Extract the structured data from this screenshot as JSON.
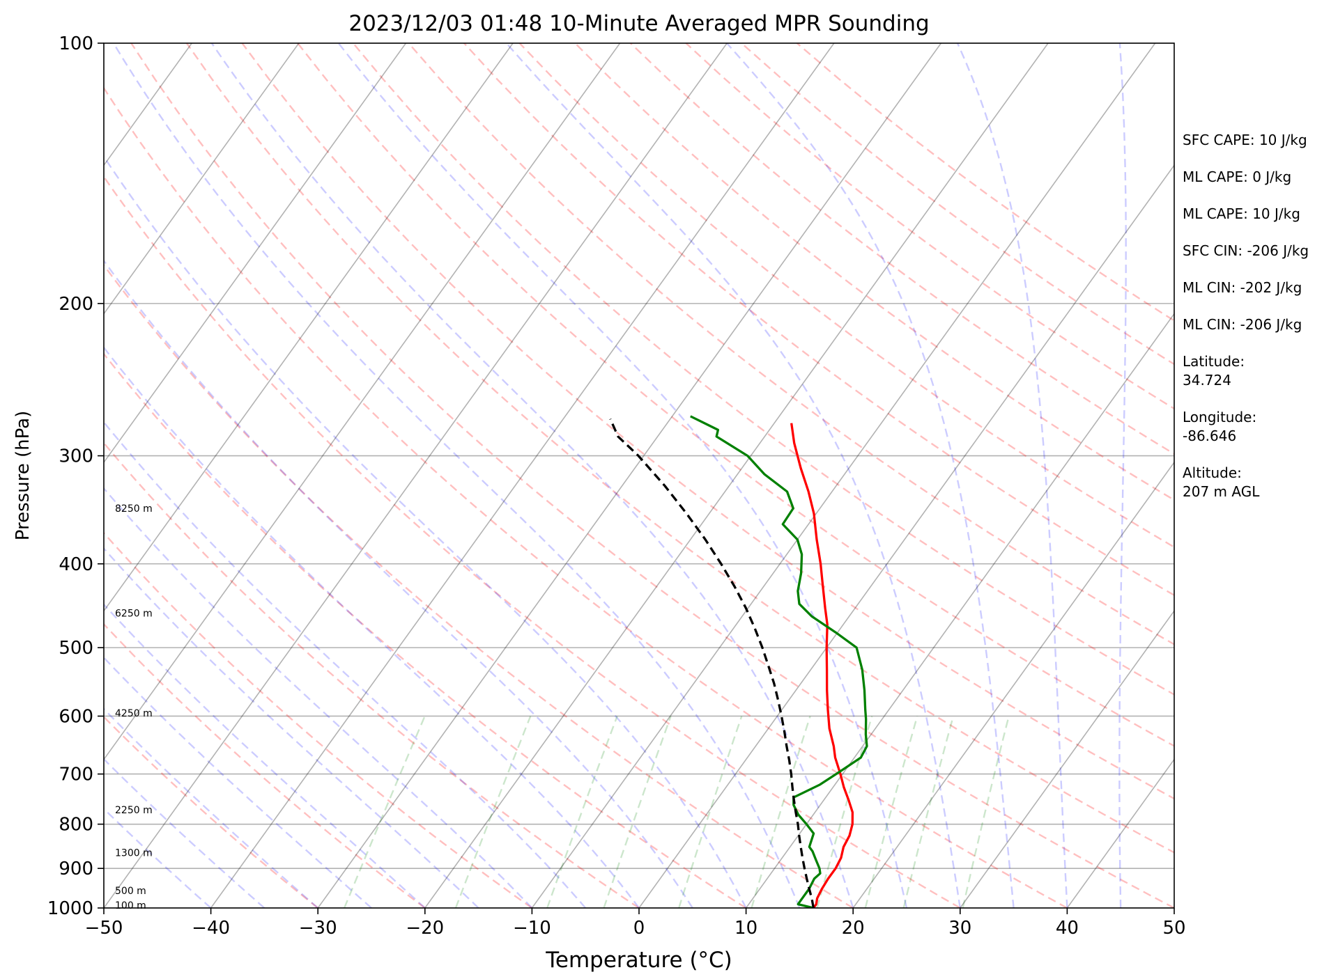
{
  "chart_data": {
    "type": "line",
    "title": "2023/12/03 01:48 10-Minute Averaged MPR Sounding",
    "xlabel": "Temperature (°C)",
    "ylabel": "Pressure (hPa)",
    "xlim": [
      -50,
      50
    ],
    "ylim": [
      1000,
      100
    ],
    "y_scale": "log",
    "grid": true,
    "x_ticks": [
      -50,
      -40,
      -30,
      -20,
      -10,
      0,
      10,
      20,
      30,
      40,
      50
    ],
    "x_tick_labels": [
      "−50",
      "−40",
      "−30",
      "−20",
      "−10",
      "0",
      "10",
      "20",
      "30",
      "40",
      "50"
    ],
    "y_ticks": [
      100,
      200,
      300,
      400,
      500,
      600,
      700,
      800,
      900,
      1000
    ],
    "y_tick_labels": [
      "100",
      "200",
      "300",
      "400",
      "500",
      "600",
      "700",
      "800",
      "900",
      "1000"
    ],
    "height_labels": [
      {
        "text": "100 m",
        "p": 993
      },
      {
        "text": "500 m",
        "p": 955
      },
      {
        "text": "1300 m",
        "p": 863
      },
      {
        "text": "2250 m",
        "p": 770
      },
      {
        "text": "4250 m",
        "p": 595
      },
      {
        "text": "6250 m",
        "p": 456
      },
      {
        "text": "8250 m",
        "p": 345
      }
    ],
    "series": [
      {
        "key": "temperature",
        "color": "#ff0000",
        "dash": false,
        "points": [
          [
            1000,
            16.3
          ],
          [
            990,
            16.3
          ],
          [
            975,
            16.0
          ],
          [
            950,
            15.8
          ],
          [
            925,
            15.7
          ],
          [
            900,
            15.7
          ],
          [
            875,
            15.5
          ],
          [
            850,
            15.0
          ],
          [
            825,
            14.8
          ],
          [
            800,
            14.3
          ],
          [
            775,
            13.5
          ],
          [
            750,
            12.3
          ],
          [
            725,
            11.0
          ],
          [
            700,
            9.8
          ],
          [
            670,
            8.2
          ],
          [
            650,
            7.3
          ],
          [
            620,
            5.7
          ],
          [
            590,
            4.3
          ],
          [
            560,
            2.9
          ],
          [
            530,
            1.5
          ],
          [
            500,
            0.0
          ],
          [
            470,
            -1.5
          ],
          [
            450,
            -2.8
          ],
          [
            420,
            -4.8
          ],
          [
            400,
            -6.2
          ],
          [
            375,
            -8.2
          ],
          [
            350,
            -10.2
          ],
          [
            330,
            -12.2
          ],
          [
            310,
            -14.5
          ],
          [
            290,
            -16.8
          ],
          [
            275,
            -18.4
          ]
        ]
      },
      {
        "key": "dewpoint",
        "color": "#008000",
        "dash": false,
        "points": [
          [
            1000,
            16.3
          ],
          [
            990,
            14.6
          ],
          [
            975,
            14.6
          ],
          [
            960,
            14.6
          ],
          [
            950,
            14.6
          ],
          [
            925,
            14.4
          ],
          [
            912,
            14.6
          ],
          [
            900,
            14.2
          ],
          [
            880,
            13.3
          ],
          [
            860,
            12.4
          ],
          [
            850,
            11.8
          ],
          [
            820,
            11.3
          ],
          [
            800,
            10.0
          ],
          [
            780,
            8.6
          ],
          [
            760,
            7.5
          ],
          [
            745,
            7.0
          ],
          [
            720,
            8.6
          ],
          [
            700,
            9.4
          ],
          [
            690,
            9.8
          ],
          [
            670,
            10.6
          ],
          [
            650,
            10.4
          ],
          [
            630,
            9.5
          ],
          [
            605,
            8.5
          ],
          [
            590,
            7.8
          ],
          [
            560,
            6.4
          ],
          [
            530,
            4.8
          ],
          [
            500,
            2.8
          ],
          [
            480,
            -0.2
          ],
          [
            460,
            -3.5
          ],
          [
            445,
            -5.5
          ],
          [
            430,
            -6.5
          ],
          [
            410,
            -7.4
          ],
          [
            390,
            -8.6
          ],
          [
            375,
            -10.0
          ],
          [
            360,
            -12.4
          ],
          [
            345,
            -12.5
          ],
          [
            330,
            -14.2
          ],
          [
            315,
            -17.5
          ],
          [
            300,
            -20.3
          ],
          [
            285,
            -24.5
          ],
          [
            280,
            -24.8
          ],
          [
            270,
            -28.3
          ]
        ]
      },
      {
        "key": "parcel",
        "color": "#000000",
        "dash": true,
        "points": [
          [
            1000,
            16.3
          ],
          [
            975,
            15.5
          ],
          [
            950,
            14.6
          ],
          [
            925,
            13.7
          ],
          [
            900,
            12.8
          ],
          [
            875,
            11.9
          ],
          [
            850,
            11.0
          ],
          [
            825,
            10.1
          ],
          [
            800,
            9.2
          ],
          [
            775,
            8.2
          ],
          [
            750,
            7.2
          ],
          [
            725,
            6.2
          ],
          [
            700,
            5.2
          ],
          [
            675,
            4.1
          ],
          [
            650,
            2.9
          ],
          [
            625,
            1.7
          ],
          [
            600,
            0.4
          ],
          [
            575,
            -1.0
          ],
          [
            550,
            -2.5
          ],
          [
            525,
            -4.2
          ],
          [
            500,
            -6.0
          ],
          [
            475,
            -8.0
          ],
          [
            450,
            -10.2
          ],
          [
            425,
            -12.7
          ],
          [
            400,
            -15.5
          ],
          [
            375,
            -18.6
          ],
          [
            350,
            -22.1
          ],
          [
            325,
            -26.0
          ],
          [
            300,
            -30.5
          ],
          [
            285,
            -33.7
          ],
          [
            272,
            -35.6
          ]
        ]
      }
    ],
    "background_lines": {
      "isotherms": {
        "color": "#000000",
        "opacity": 0.3,
        "step": 10
      },
      "dry_adiabats": {
        "color": "#ff0000",
        "opacity": 0.25
      },
      "moist_adiabats": {
        "color": "#0000ff",
        "opacity": 0.2
      },
      "mixing_ratio": {
        "color": "#008000",
        "opacity": 0.2
      }
    }
  },
  "stats": {
    "sfc_cape": "SFC CAPE: 10 J/kg",
    "ml_cape_1": "ML CAPE: 0 J/kg",
    "ml_cape_2": "ML CAPE: 10 J/kg",
    "sfc_cin": "SFC CIN: -206 J/kg",
    "ml_cin_1": "ML CIN: -202 J/kg",
    "ml_cin_2": "ML CIN: -206 J/kg",
    "latitude_label": "Latitude:",
    "latitude_value": "34.724",
    "longitude_label": "Longitude:",
    "longitude_value": "-86.646",
    "altitude_label": "Altitude:",
    "altitude_value": "207 m AGL"
  }
}
